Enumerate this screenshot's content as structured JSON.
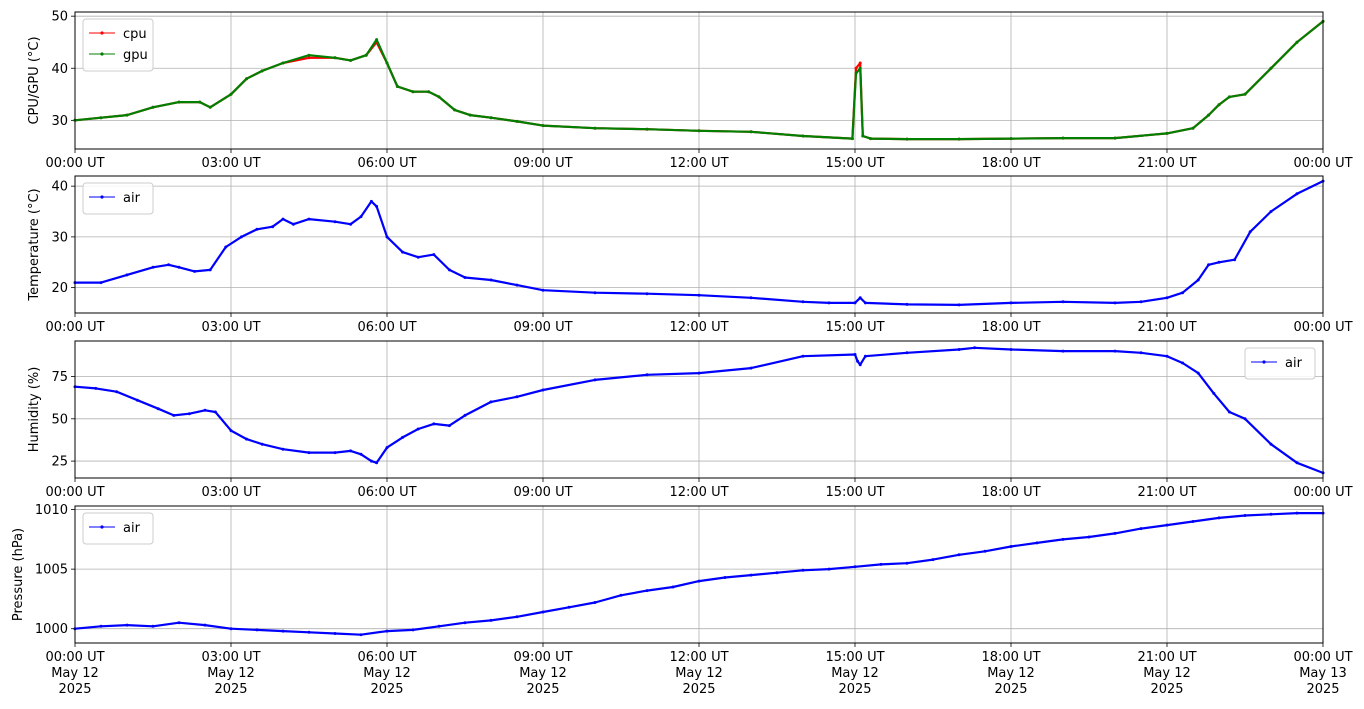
{
  "colors": {
    "cpu": "#ff0000",
    "gpu": "#008000",
    "air": "#0000ff",
    "grid": "#b0b0b0",
    "legend_border": "#cccccc"
  },
  "chart_data": [
    {
      "type": "line",
      "ylabel": "CPU/GPU (°C)",
      "xlim": [
        "00:00 UT",
        "00:00 UT"
      ],
      "ylim": [
        24.5,
        50.8
      ],
      "yticks": [
        30,
        40,
        50
      ],
      "grid": true,
      "legend": "top-left",
      "series": [
        {
          "name": "cpu",
          "color": "#ff0000",
          "x": [
            0,
            0.5,
            1,
            1.5,
            2,
            2.4,
            2.6,
            3,
            3.3,
            3.6,
            4,
            4.5,
            5,
            5.3,
            5.6,
            5.8,
            6,
            6.2,
            6.5,
            6.8,
            7,
            7.3,
            7.6,
            8,
            8.5,
            9,
            10,
            11,
            12,
            13,
            14,
            14.95,
            15.02,
            15.1,
            15.15,
            15.3,
            16,
            17,
            18,
            19,
            20,
            21,
            21.5,
            21.8,
            22,
            22.2,
            22.5,
            23,
            23.5,
            24
          ],
          "y": [
            30,
            30.5,
            31,
            32.5,
            33.5,
            33.5,
            32.5,
            35,
            38,
            39.5,
            41,
            42,
            42,
            41.5,
            42.5,
            45,
            41,
            36.5,
            35.5,
            35.5,
            34.5,
            32,
            31,
            30.5,
            29.8,
            29,
            28.5,
            28.3,
            28,
            27.8,
            27,
            26.5,
            40,
            41,
            27,
            26.5,
            26.4,
            26.4,
            26.5,
            26.6,
            26.6,
            27.5,
            28.5,
            31,
            33,
            34.5,
            35,
            40,
            45,
            49
          ]
        },
        {
          "name": "gpu",
          "color": "#008000",
          "x": [
            0,
            0.5,
            1,
            1.5,
            2,
            2.4,
            2.6,
            3,
            3.3,
            3.6,
            4,
            4.5,
            5,
            5.3,
            5.6,
            5.8,
            6,
            6.2,
            6.5,
            6.8,
            7,
            7.3,
            7.6,
            8,
            8.5,
            9,
            10,
            11,
            12,
            13,
            14,
            14.95,
            15.02,
            15.1,
            15.15,
            15.3,
            16,
            17,
            18,
            19,
            20,
            21,
            21.5,
            21.8,
            22,
            22.2,
            22.5,
            23,
            23.5,
            24
          ],
          "y": [
            30,
            30.5,
            31,
            32.5,
            33.5,
            33.5,
            32.5,
            35,
            38,
            39.5,
            41,
            42.5,
            42,
            41.5,
            42.5,
            45.5,
            41,
            36.5,
            35.5,
            35.5,
            34.5,
            32,
            31,
            30.5,
            29.8,
            29,
            28.5,
            28.3,
            28,
            27.8,
            27,
            26.5,
            39,
            40,
            27,
            26.5,
            26.4,
            26.4,
            26.5,
            26.6,
            26.6,
            27.5,
            28.5,
            31,
            33,
            34.5,
            35,
            40,
            45,
            49
          ]
        }
      ]
    },
    {
      "type": "line",
      "ylabel": "Temperature (°C)",
      "xlim": [
        "00:00 UT",
        "00:00 UT"
      ],
      "ylim": [
        15,
        42
      ],
      "yticks": [
        20,
        30,
        40
      ],
      "grid": true,
      "legend": "top-left",
      "series": [
        {
          "name": "air",
          "color": "#0000ff",
          "x": [
            0,
            0.5,
            1,
            1.5,
            1.8,
            2,
            2.3,
            2.6,
            2.9,
            3.2,
            3.5,
            3.8,
            4,
            4.2,
            4.5,
            5,
            5.3,
            5.5,
            5.7,
            5.8,
            6,
            6.3,
            6.6,
            6.9,
            7.2,
            7.5,
            8,
            8.5,
            9,
            10,
            11,
            12,
            13,
            14,
            14.5,
            15,
            15.1,
            15.2,
            16,
            17,
            18,
            19,
            20,
            20.5,
            21,
            21.3,
            21.6,
            21.8,
            22,
            22.3,
            22.6,
            23,
            23.5,
            24
          ],
          "y": [
            21,
            21,
            22.5,
            24,
            24.5,
            24,
            23.2,
            23.5,
            28,
            30,
            31.5,
            32,
            33.5,
            32.5,
            33.5,
            33,
            32.5,
            34,
            37,
            36,
            30,
            27,
            26,
            26.5,
            23.5,
            22,
            21.5,
            20.5,
            19.5,
            19,
            18.8,
            18.5,
            18,
            17.2,
            17,
            17,
            18,
            17,
            16.7,
            16.6,
            17,
            17.2,
            17,
            17.2,
            18,
            19,
            21.5,
            24.5,
            25,
            25.5,
            31,
            35,
            38.5,
            41
          ]
        }
      ]
    },
    {
      "type": "line",
      "ylabel": "Humidity (%)",
      "xlim": [
        "00:00 UT",
        "00:00 UT"
      ],
      "ylim": [
        15,
        96
      ],
      "yticks": [
        25,
        50,
        75
      ],
      "grid": true,
      "legend": "top-right",
      "series": [
        {
          "name": "air",
          "color": "#0000ff",
          "x": [
            0,
            0.4,
            0.8,
            1.2,
            1.6,
            1.9,
            2.2,
            2.5,
            2.7,
            3,
            3.3,
            3.6,
            4,
            4.5,
            5,
            5.3,
            5.5,
            5.7,
            5.8,
            6,
            6.3,
            6.6,
            6.9,
            7.2,
            7.5,
            8,
            8.5,
            9,
            10,
            11,
            12,
            13,
            14,
            15,
            15.05,
            15.1,
            15.2,
            16,
            17,
            17.3,
            18,
            19,
            20,
            20.5,
            21,
            21.3,
            21.6,
            21.9,
            22.2,
            22.5,
            23,
            23.5,
            24
          ],
          "y": [
            69,
            68,
            66,
            61,
            56,
            52,
            53,
            55,
            54,
            43,
            38,
            35,
            32,
            30,
            30,
            31,
            29,
            25,
            24,
            33,
            39,
            44,
            47,
            46,
            52,
            60,
            63,
            67,
            73,
            76,
            77,
            80,
            87,
            88,
            84,
            82,
            87,
            89,
            91,
            92,
            91,
            90,
            90,
            89,
            87,
            83,
            77,
            65,
            54,
            50,
            35,
            24,
            18
          ]
        }
      ]
    },
    {
      "type": "line",
      "ylabel": "Pressure (hPa)",
      "xlim": [
        "00:00 UT May 12 2025",
        "00:00 UT May 13 2025"
      ],
      "ylim": [
        998.8,
        1010.3
      ],
      "yticks": [
        1000,
        1005,
        1010
      ],
      "grid": true,
      "legend": "top-left",
      "series": [
        {
          "name": "air",
          "color": "#0000ff",
          "x": [
            0,
            0.5,
            1,
            1.5,
            2,
            2.5,
            3,
            3.5,
            4,
            4.5,
            5,
            5.5,
            6,
            6.5,
            7,
            7.5,
            8,
            8.5,
            9,
            9.5,
            10,
            10.5,
            11,
            11.5,
            12,
            12.5,
            13,
            13.5,
            14,
            14.5,
            15,
            15.5,
            16,
            16.5,
            17,
            17.5,
            18,
            18.5,
            19,
            19.5,
            20,
            20.5,
            21,
            21.5,
            22,
            22.5,
            23,
            23.5,
            24
          ],
          "y": [
            1000,
            1000.2,
            1000.3,
            1000.2,
            1000.5,
            1000.3,
            1000,
            999.9,
            999.8,
            999.7,
            999.6,
            999.5,
            999.8,
            999.9,
            1000.2,
            1000.5,
            1000.7,
            1001,
            1001.4,
            1001.8,
            1002.2,
            1002.8,
            1003.2,
            1003.5,
            1004,
            1004.3,
            1004.5,
            1004.7,
            1004.9,
            1005,
            1005.2,
            1005.4,
            1005.5,
            1005.8,
            1006.2,
            1006.5,
            1006.9,
            1007.2,
            1007.5,
            1007.7,
            1008,
            1008.4,
            1008.7,
            1009,
            1009.3,
            1009.5,
            1009.6,
            1009.7,
            1009.7
          ]
        }
      ]
    }
  ],
  "xaxis": {
    "ticks": [
      "00:00 UT",
      "03:00 UT",
      "06:00 UT",
      "09:00 UT",
      "12:00 UT",
      "15:00 UT",
      "18:00 UT",
      "21:00 UT",
      "00:00 UT"
    ],
    "date_labels": [
      "May 12\n2025",
      "May 12\n2025",
      "May 12\n2025",
      "May 12\n2025",
      "May 12\n2025",
      "May 12\n2025",
      "May 12\n2025",
      "May 12\n2025",
      "May 13\n2025"
    ]
  }
}
